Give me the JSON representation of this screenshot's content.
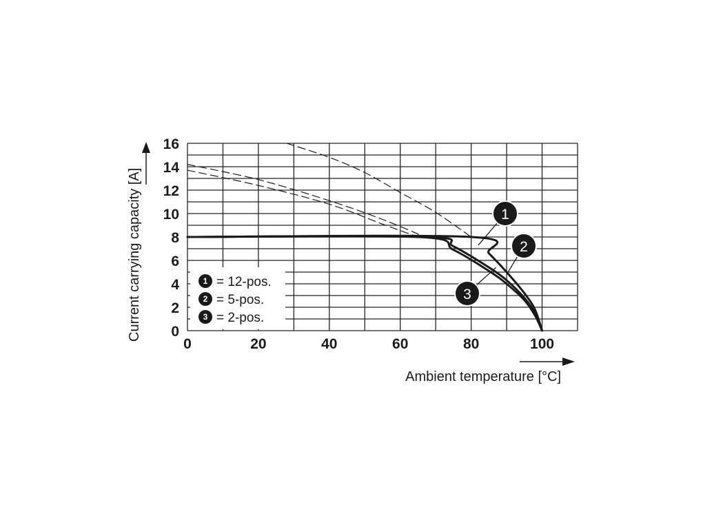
{
  "chart_data": {
    "type": "line",
    "xlabel": "Ambient temperature [°C]",
    "ylabel": "Current carrying capacity [A]",
    "xlim": [
      0,
      110
    ],
    "ylim": [
      0,
      16
    ],
    "x_ticks": [
      "0",
      "20",
      "40",
      "60",
      "80",
      "100"
    ],
    "y_ticks": [
      "0",
      "2",
      "4",
      "6",
      "8",
      "10",
      "12",
      "14",
      "16"
    ],
    "grid": true,
    "legend_placement": "bottom-left",
    "legend": [
      {
        "marker": "1",
        "label": "= 12-pos."
      },
      {
        "marker": "2",
        "label": "= 5-pos."
      },
      {
        "marker": "3",
        "label": "= 2-pos."
      }
    ],
    "series": [
      {
        "name": "1",
        "style": "solid",
        "x": [
          0,
          80,
          85,
          90,
          95,
          98,
          100
        ],
        "y": [
          8,
          8,
          6.6,
          5.0,
          3.2,
          1.8,
          0
        ]
      },
      {
        "name": "2",
        "style": "solid",
        "x": [
          0,
          67,
          75,
          85,
          90,
          95,
          98,
          100
        ],
        "y": [
          8,
          8,
          7.2,
          5.4,
          4.3,
          2.8,
          1.5,
          0
        ]
      },
      {
        "name": "3",
        "style": "solid",
        "x": [
          0,
          65,
          75,
          85,
          90,
          95,
          98,
          100
        ],
        "y": [
          8,
          8,
          6.9,
          5.1,
          4.0,
          2.6,
          1.3,
          0
        ]
      },
      {
        "name": "1",
        "style": "dashed",
        "x": [
          28,
          40,
          50,
          60,
          70,
          80
        ],
        "y": [
          16,
          14.8,
          13.5,
          11.8,
          10.1,
          8
        ]
      },
      {
        "name": "2",
        "style": "dashed",
        "x": [
          0,
          20,
          40,
          55,
          67
        ],
        "y": [
          14.2,
          12.9,
          11.1,
          9.5,
          8
        ]
      },
      {
        "name": "3",
        "style": "dashed",
        "x": [
          0,
          20,
          40,
          55,
          65
        ],
        "y": [
          13.7,
          12.4,
          10.8,
          9.1,
          8
        ]
      }
    ],
    "callouts": [
      {
        "text": "1",
        "x": 82,
        "y": 7.3
      },
      {
        "text": "2",
        "x": 90,
        "y": 4.8
      },
      {
        "text": "3",
        "x": 87,
        "y": 5.4
      }
    ]
  }
}
